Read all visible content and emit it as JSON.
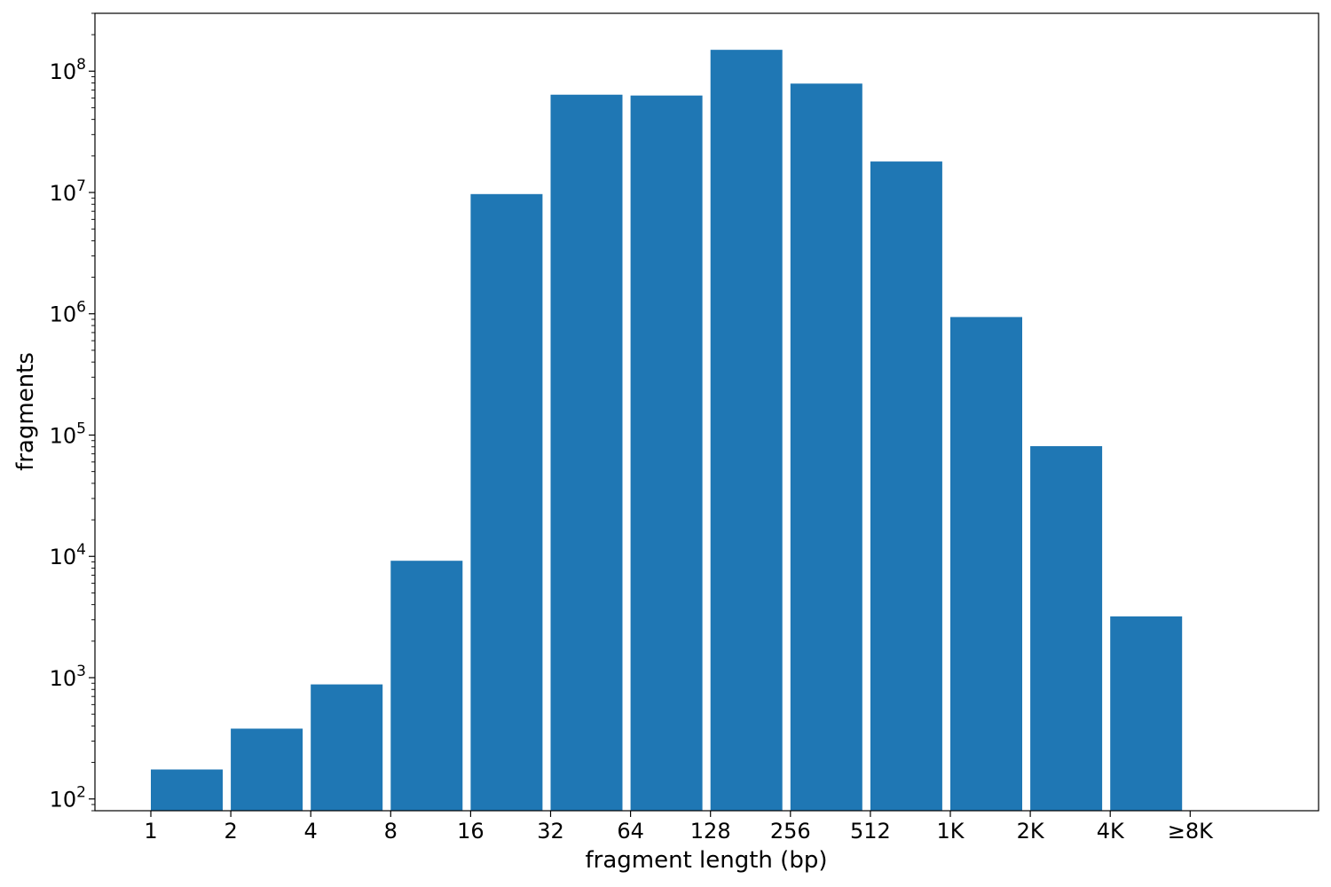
{
  "chart_data": {
    "type": "bar",
    "xlabel": "fragment length (bp)",
    "ylabel": "fragments",
    "yscale": "log",
    "ylim": [
      80,
      300000000
    ],
    "grid": false,
    "categories": [
      "1",
      "2",
      "4",
      "8",
      "16",
      "32",
      "64",
      "128",
      "256",
      "512",
      "1K",
      "2K",
      "4K",
      "≥8K"
    ],
    "values": [
      175,
      380,
      880,
      9200,
      9700000,
      64000000,
      63000000,
      150000000,
      79000000,
      18000000,
      940000,
      81000,
      3200,
      null
    ],
    "y_tick_values": [
      100,
      1000,
      10000,
      100000,
      1000000,
      10000000,
      100000000
    ],
    "y_tick_labels": [
      {
        "base": "10",
        "exp": "2"
      },
      {
        "base": "10",
        "exp": "3"
      },
      {
        "base": "10",
        "exp": "4"
      },
      {
        "base": "10",
        "exp": "5"
      },
      {
        "base": "10",
        "exp": "6"
      },
      {
        "base": "10",
        "exp": "7"
      },
      {
        "base": "10",
        "exp": "8"
      }
    ],
    "bar_color": "#1f77b4"
  }
}
